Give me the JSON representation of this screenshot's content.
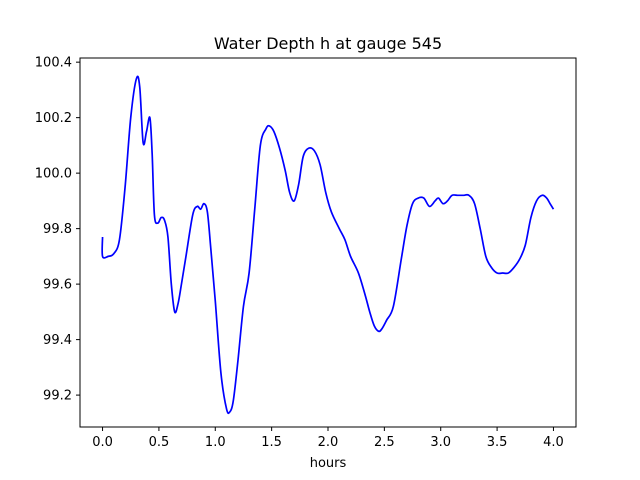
{
  "chart_data": {
    "type": "line",
    "title": "Water Depth h at gauge 545",
    "xlabel": "hours",
    "ylabel": "",
    "xlim": [
      -0.2,
      4.2
    ],
    "ylim": [
      99.085,
      100.415
    ],
    "x_ticks": [
      0.0,
      0.5,
      1.0,
      1.5,
      2.0,
      2.5,
      3.0,
      3.5,
      4.0
    ],
    "x_tick_labels": [
      "0.0",
      "0.5",
      "1.0",
      "1.5",
      "2.0",
      "2.5",
      "3.0",
      "3.5",
      "4.0"
    ],
    "y_ticks": [
      99.2,
      99.4,
      99.6,
      99.8,
      100.0,
      100.2,
      100.4
    ],
    "y_tick_labels": [
      "99.2",
      "99.4",
      "99.6",
      "99.8",
      "100.0",
      "100.2",
      "100.4"
    ],
    "grid": false,
    "series": [
      {
        "color": "#0000ff",
        "x": [
          0.0,
          0.0,
          0.05,
          0.1,
          0.15,
          0.2,
          0.25,
          0.3,
          0.33,
          0.36,
          0.39,
          0.42,
          0.44,
          0.46,
          0.49,
          0.52,
          0.55,
          0.58,
          0.61,
          0.64,
          0.67,
          0.7,
          0.74,
          0.8,
          0.84,
          0.87,
          0.9,
          0.93,
          0.96,
          1.0,
          1.05,
          1.1,
          1.13,
          1.16,
          1.2,
          1.25,
          1.3,
          1.35,
          1.4,
          1.45,
          1.48,
          1.52,
          1.57,
          1.62,
          1.66,
          1.7,
          1.74,
          1.78,
          1.83,
          1.88,
          1.93,
          1.98,
          2.03,
          2.1,
          2.15,
          2.2,
          2.27,
          2.33,
          2.37,
          2.41,
          2.45,
          2.48,
          2.52,
          2.58,
          2.65,
          2.7,
          2.75,
          2.8,
          2.85,
          2.9,
          2.95,
          2.98,
          3.02,
          3.06,
          3.1,
          3.15,
          3.2,
          3.25,
          3.3,
          3.35,
          3.4,
          3.45,
          3.5,
          3.55,
          3.6,
          3.65,
          3.7,
          3.75,
          3.8,
          3.85,
          3.9,
          3.94,
          3.97,
          4.0
        ],
        "values": [
          99.77,
          99.7,
          99.7,
          99.71,
          99.76,
          99.95,
          100.2,
          100.34,
          100.31,
          100.11,
          100.15,
          100.2,
          100.07,
          99.85,
          99.82,
          99.84,
          99.83,
          99.77,
          99.6,
          99.5,
          99.53,
          99.6,
          99.7,
          99.85,
          99.88,
          99.87,
          99.89,
          99.86,
          99.73,
          99.54,
          99.28,
          99.15,
          99.14,
          99.18,
          99.32,
          99.52,
          99.64,
          99.87,
          100.1,
          100.16,
          100.17,
          100.15,
          100.09,
          100.01,
          99.93,
          99.9,
          99.96,
          100.06,
          100.09,
          100.08,
          100.03,
          99.93,
          99.86,
          99.8,
          99.76,
          99.7,
          99.64,
          99.56,
          99.5,
          99.45,
          99.43,
          99.44,
          99.47,
          99.52,
          99.69,
          99.81,
          99.89,
          99.91,
          99.91,
          99.88,
          99.9,
          99.91,
          99.89,
          99.9,
          99.92,
          99.92,
          99.92,
          99.92,
          99.89,
          99.8,
          99.7,
          99.66,
          99.64,
          99.64,
          99.64,
          99.66,
          99.69,
          99.74,
          99.84,
          99.9,
          99.92,
          99.91,
          99.89,
          99.87
        ]
      }
    ]
  }
}
